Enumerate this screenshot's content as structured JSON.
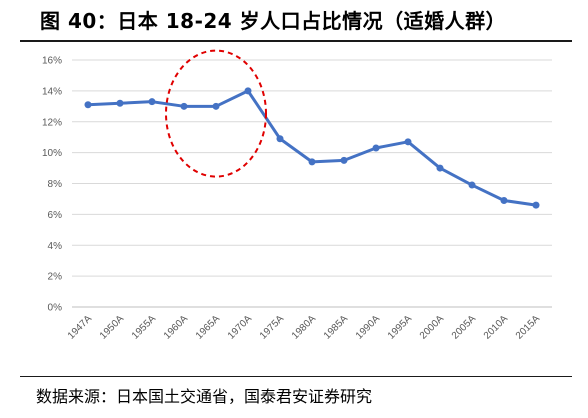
{
  "title": "图 40：日本 18-24 岁人口占比情况（适婚人群）",
  "source": "数据来源：日本国土交通省，国泰君安证券研究",
  "chart_data": {
    "type": "line",
    "title": "图 40：日本 18-24 岁人口占比情况（适婚人群）",
    "xlabel": "",
    "ylabel": "",
    "categories": [
      "1947A",
      "1950A",
      "1955A",
      "1960A",
      "1965A",
      "1970A",
      "1975A",
      "1980A",
      "1985A",
      "1990A",
      "1995A",
      "2000A",
      "2005A",
      "2010A",
      "2015A"
    ],
    "series": [
      {
        "values": [
          13.1,
          13.2,
          13.3,
          13.0,
          13.0,
          14.0,
          10.9,
          9.4,
          9.5,
          10.3,
          10.7,
          9.0,
          7.9,
          6.9,
          6.6
        ]
      }
    ],
    "ylim": [
      0,
      16
    ],
    "yticks": [
      0,
      2,
      4,
      6,
      8,
      10,
      12,
      14,
      16
    ],
    "ytick_labels": [
      "0%",
      "2%",
      "4%",
      "6%",
      "8%",
      "10%",
      "12%",
      "14%",
      "16%"
    ],
    "grid": true,
    "legend": "none",
    "line_color": "#4472C4",
    "annotation": {
      "type": "dashed-ellipse",
      "color": "#E00000",
      "covers": [
        "1960A",
        "1965A",
        "1970A"
      ]
    }
  }
}
